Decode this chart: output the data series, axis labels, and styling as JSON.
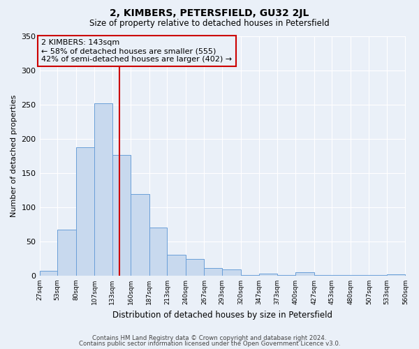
{
  "title": "2, KIMBERS, PETERSFIELD, GU32 2JL",
  "subtitle": "Size of property relative to detached houses in Petersfield",
  "xlabel": "Distribution of detached houses by size in Petersfield",
  "ylabel": "Number of detached properties",
  "bins": [
    27,
    53,
    80,
    107,
    133,
    160,
    187,
    213,
    240,
    267,
    293,
    320,
    347,
    373,
    400,
    427,
    453,
    480,
    507,
    533,
    560
  ],
  "counts": [
    7,
    67,
    187,
    252,
    176,
    119,
    70,
    31,
    24,
    11,
    9,
    1,
    3,
    1,
    5,
    1,
    1,
    1,
    1,
    2
  ],
  "bar_color": "#c8d9ee",
  "bar_edge_color": "#6a9fd8",
  "property_size": 143,
  "vline_color": "#cc0000",
  "annotation_text": "2 KIMBERS: 143sqm\n← 58% of detached houses are smaller (555)\n42% of semi-detached houses are larger (402) →",
  "annotation_box_color": "#cc0000",
  "annotation_text_color": "#000000",
  "ylim": [
    0,
    350
  ],
  "background_color": "#eaf0f8",
  "grid_color": "#ffffff",
  "footer_line1": "Contains HM Land Registry data © Crown copyright and database right 2024.",
  "footer_line2": "Contains public sector information licensed under the Open Government Licence v3.0."
}
